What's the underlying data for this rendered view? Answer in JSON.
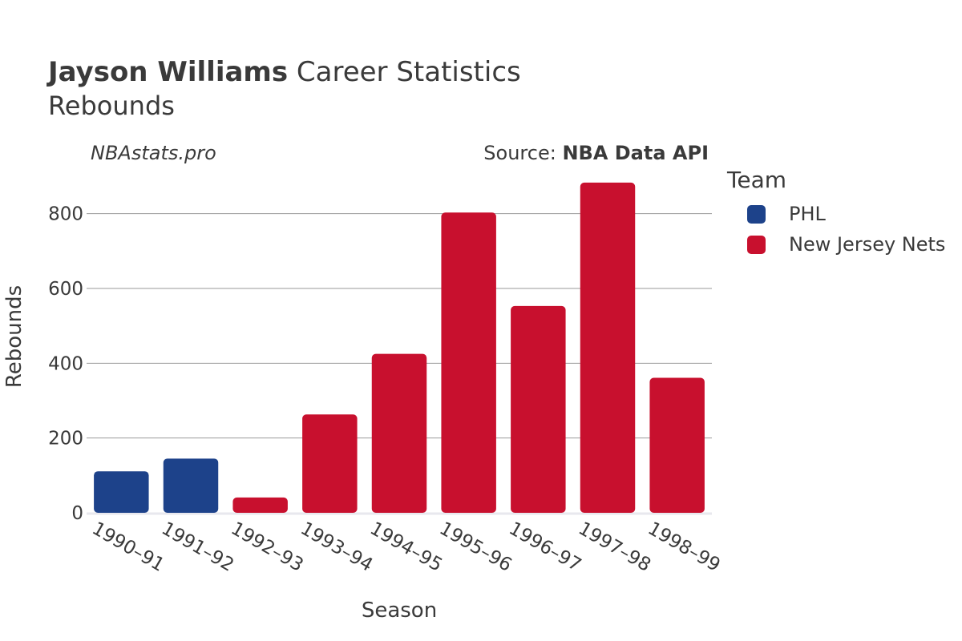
{
  "header": {
    "title_bold": "Jayson Williams",
    "title_rest": " Career Statistics",
    "subtitle": "Rebounds",
    "watermark": "NBAstats.pro",
    "source_prefix": "Source: ",
    "source_name": "NBA Data API"
  },
  "legend": {
    "title": "Team",
    "items": [
      {
        "label": "PHL",
        "color": "#1d428a"
      },
      {
        "label": "New Jersey Nets",
        "color": "#c8102e"
      }
    ]
  },
  "chart_data": {
    "type": "bar",
    "xlabel": "Season",
    "ylabel": "Rebounds",
    "ylim": [
      0,
      900
    ],
    "yticks": [
      0,
      200,
      400,
      600,
      800
    ],
    "grid": true,
    "legend_position": "right",
    "categories": [
      "1990–91",
      "1991–92",
      "1992–93",
      "1993–94",
      "1994–95",
      "1995–96",
      "1996–97",
      "1997–98",
      "1998–99"
    ],
    "teams": [
      "PHL",
      "PHL",
      "New Jersey Nets",
      "New Jersey Nets",
      "New Jersey Nets",
      "New Jersey Nets",
      "New Jersey Nets",
      "New Jersey Nets",
      "New Jersey Nets"
    ],
    "values": [
      111,
      145,
      41,
      263,
      425,
      803,
      553,
      883,
      361
    ]
  }
}
